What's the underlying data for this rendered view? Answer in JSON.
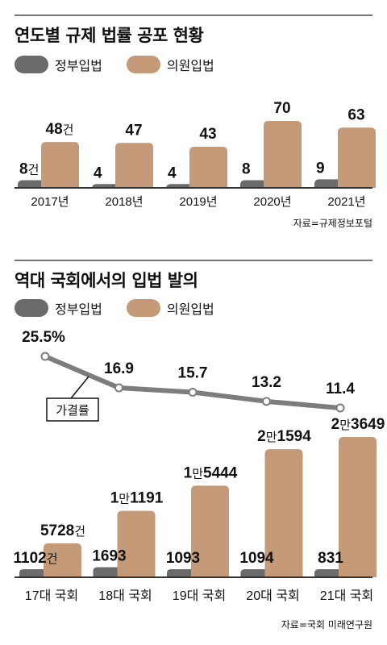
{
  "colors": {
    "government": "#6b6b6b",
    "assembly": "#c49a78",
    "line": "#7d7d7d",
    "axis": "#333333"
  },
  "top": {
    "title": "연도별 규제 법률 공포 현황",
    "legend": {
      "government": "정부입법",
      "assembly": "의원입법"
    },
    "source": "자료=규제정보포털"
  },
  "bottom": {
    "title": "역대 국회에서의 입법 발의",
    "legend": {
      "government": "정부입법",
      "assembly": "의원입법"
    },
    "source": "자료=국회 미래연구원"
  },
  "chart_data": [
    {
      "type": "bar",
      "categories": [
        "2017년",
        "2018년",
        "2019년",
        "2020년",
        "2021년"
      ],
      "series": [
        {
          "name": "정부입법",
          "values": [
            8,
            4,
            4,
            8,
            9
          ]
        },
        {
          "name": "의원입법",
          "values": [
            48,
            47,
            43,
            70,
            63
          ]
        }
      ],
      "labels": {
        "government": [
          "8건",
          "4",
          "4",
          "8",
          "9"
        ],
        "assembly": [
          "48건",
          "47",
          "43",
          "70",
          "63"
        ]
      },
      "ylim": [
        0,
        70
      ]
    },
    {
      "type": "line",
      "categories": [
        "17대 국회",
        "18대 국회",
        "19대 국회",
        "20대 국회",
        "21대 국회"
      ],
      "series": [
        {
          "name": "가결률",
          "values": [
            25.5,
            16.9,
            15.7,
            13.2,
            11.4
          ]
        }
      ],
      "labels": [
        "25.5%",
        "16.9",
        "15.7",
        "13.2",
        "11.4"
      ],
      "callout": "가결률"
    },
    {
      "type": "bar",
      "categories": [
        "17대 국회",
        "18대 국회",
        "19대 국회",
        "20대 국회",
        "21대 국회"
      ],
      "series": [
        {
          "name": "정부입법",
          "values": [
            1102,
            1693,
            1093,
            1094,
            831
          ]
        },
        {
          "name": "의원입법",
          "values": [
            5728,
            11191,
            15444,
            21594,
            23649
          ]
        }
      ],
      "labels": {
        "government": [
          [
            {
              "t": "1102"
            },
            {
              "t": "건",
              "u": true
            }
          ],
          [
            {
              "t": "1693"
            }
          ],
          [
            {
              "t": "1093"
            }
          ],
          [
            {
              "t": "1094"
            }
          ],
          [
            {
              "t": "831"
            }
          ]
        ],
        "assembly": [
          [
            {
              "t": "5728"
            },
            {
              "t": "건",
              "u": true
            }
          ],
          [
            {
              "t": "1"
            },
            {
              "t": "만",
              "u": true
            },
            {
              "t": "1191"
            }
          ],
          [
            {
              "t": "1"
            },
            {
              "t": "만",
              "u": true
            },
            {
              "t": "5444"
            }
          ],
          [
            {
              "t": "2"
            },
            {
              "t": "만",
              "u": true
            },
            {
              "t": "1594"
            }
          ],
          [
            {
              "t": "2"
            },
            {
              "t": "만",
              "u": true
            },
            {
              "t": "3649"
            }
          ]
        ]
      },
      "ylim": [
        0,
        23649
      ]
    }
  ]
}
